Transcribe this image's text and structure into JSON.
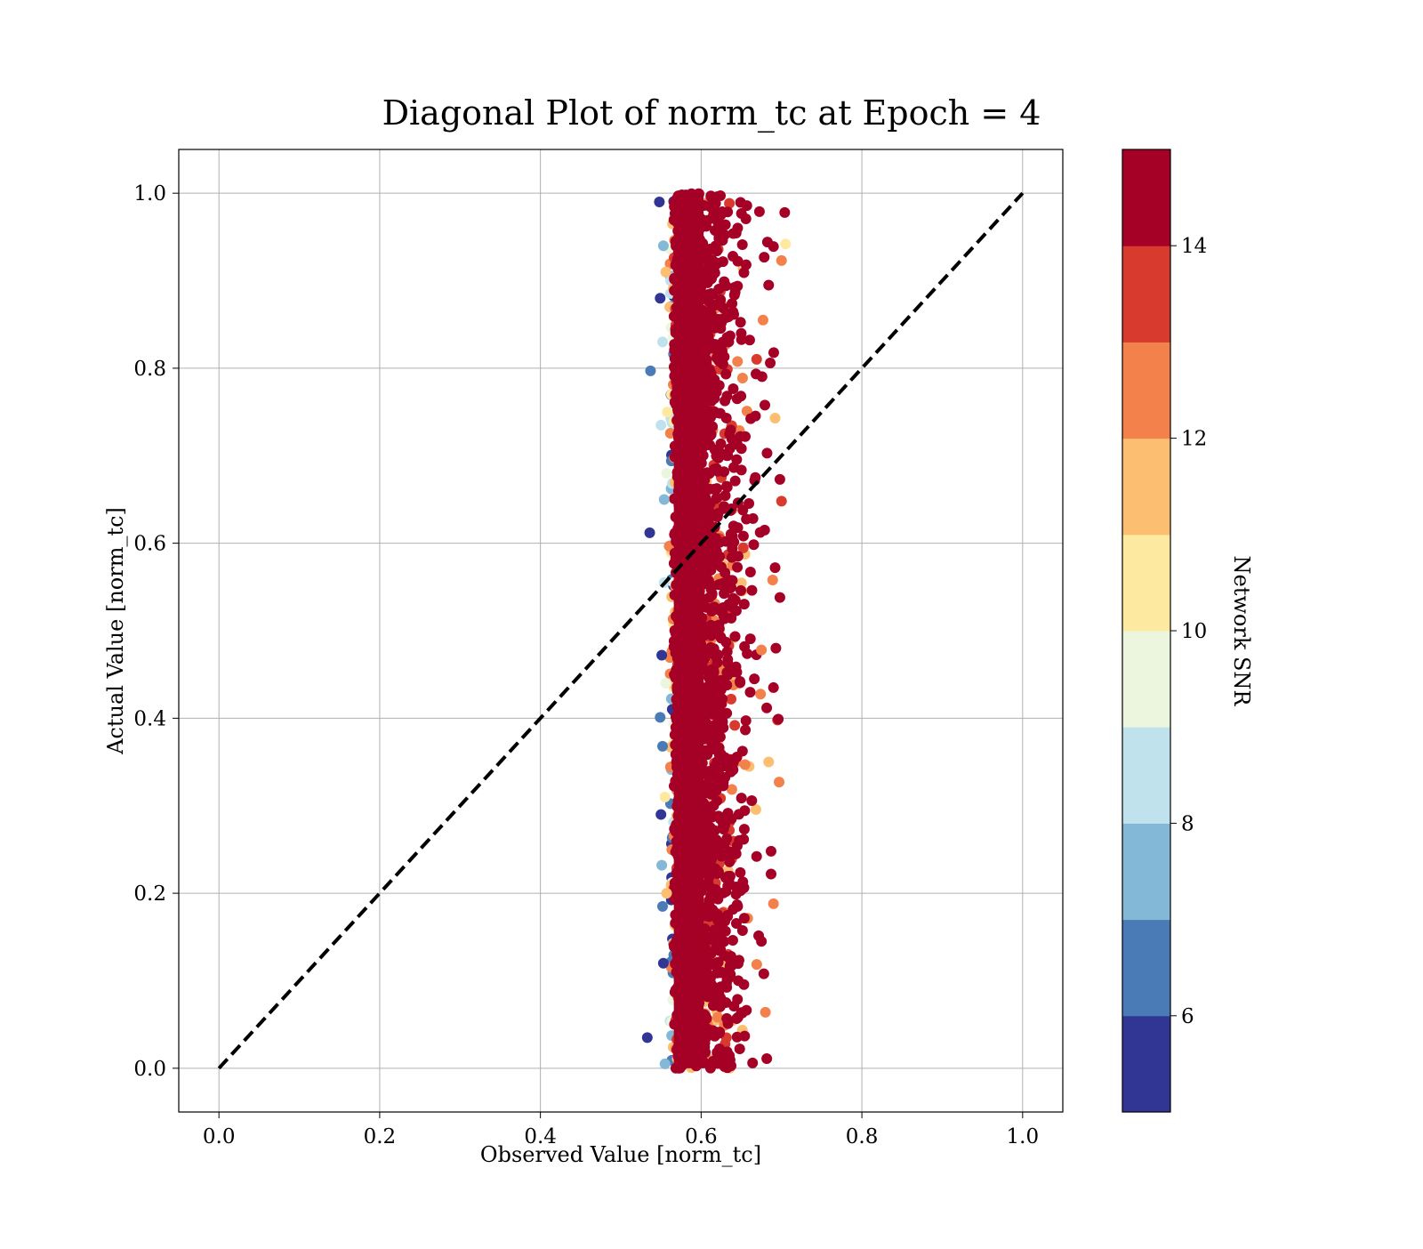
{
  "chart_data": {
    "type": "scatter",
    "title": "Diagonal Plot of norm_tc at Epoch = 4",
    "xlabel": "Observed Value [norm_tc]",
    "ylabel": "Actual Value [norm_tc]",
    "xlim": [
      -0.05,
      1.05
    ],
    "ylim": [
      -0.05,
      1.05
    ],
    "xticks": [
      "0.0",
      "0.2",
      "0.4",
      "0.6",
      "0.8",
      "1.0"
    ],
    "yticks": [
      "0.0",
      "0.2",
      "0.4",
      "0.6",
      "0.8",
      "1.0"
    ],
    "grid": true,
    "reference_line": {
      "style": "dashed",
      "color": "#000000",
      "from": [
        0,
        0
      ],
      "to": [
        1,
        1
      ]
    },
    "colorbar": {
      "label": "Network SNR",
      "range": [
        5,
        15
      ],
      "ticks": [
        "6",
        "8",
        "10",
        "12",
        "14"
      ],
      "bins": [
        {
          "from": 5,
          "to": 6,
          "color": "#313695"
        },
        {
          "from": 6,
          "to": 7,
          "color": "#4a7bb7"
        },
        {
          "from": 7,
          "to": 8,
          "color": "#83b8d7"
        },
        {
          "from": 8,
          "to": 9,
          "color": "#c0e2ec"
        },
        {
          "from": 9,
          "to": 10,
          "color": "#ecf6df"
        },
        {
          "from": 10,
          "to": 11,
          "color": "#fde9a0"
        },
        {
          "from": 11,
          "to": 12,
          "color": "#fcbe70"
        },
        {
          "from": 12,
          "to": 13,
          "color": "#f2814c"
        },
        {
          "from": 13,
          "to": 14,
          "color": "#d83a2d"
        },
        {
          "from": 14,
          "to": 15,
          "color": "#a50026"
        }
      ]
    },
    "points": [
      {
        "x": 0.548,
        "y": 0.99,
        "snr": 5.3
      },
      {
        "x": 0.533,
        "y": 0.035,
        "snr": 5.2
      },
      {
        "x": 0.536,
        "y": 0.612,
        "snr": 5.4
      },
      {
        "x": 0.537,
        "y": 0.797,
        "snr": 6.3
      },
      {
        "x": 0.549,
        "y": 0.88,
        "snr": 5.5
      },
      {
        "x": 0.551,
        "y": 0.472,
        "snr": 5.6
      },
      {
        "x": 0.549,
        "y": 0.401,
        "snr": 6.1
      },
      {
        "x": 0.55,
        "y": 0.29,
        "snr": 5.7
      },
      {
        "x": 0.552,
        "y": 0.185,
        "snr": 6.2
      },
      {
        "x": 0.553,
        "y": 0.12,
        "snr": 5.4
      },
      {
        "x": 0.552,
        "y": 0.368,
        "snr": 6.6
      },
      {
        "x": 0.551,
        "y": 0.232,
        "snr": 7.1
      },
      {
        "x": 0.554,
        "y": 0.65,
        "snr": 7.5
      },
      {
        "x": 0.55,
        "y": 0.735,
        "snr": 8.2
      },
      {
        "x": 0.553,
        "y": 0.94,
        "snr": 7.8
      },
      {
        "x": 0.555,
        "y": 0.005,
        "snr": 7.3
      },
      {
        "x": 0.554,
        "y": 0.555,
        "snr": 8.5
      },
      {
        "x": 0.552,
        "y": 0.83,
        "snr": 8.8
      },
      {
        "x": 0.557,
        "y": 0.68,
        "snr": 9.4
      },
      {
        "x": 0.556,
        "y": 0.44,
        "snr": 9.6
      },
      {
        "x": 0.555,
        "y": 0.31,
        "snr": 10.4
      },
      {
        "x": 0.558,
        "y": 0.75,
        "snr": 10.6
      },
      {
        "x": 0.556,
        "y": 0.91,
        "snr": 11.3
      },
      {
        "x": 0.557,
        "y": 0.2,
        "snr": 11.6
      },
      {
        "x": 0.705,
        "y": 0.942,
        "snr": 10.5
      },
      {
        "x": 0.7,
        "y": 0.923,
        "snr": 12.5
      },
      {
        "x": 0.68,
        "y": 0.064,
        "snr": 12.6
      },
      {
        "x": 0.69,
        "y": 0.188,
        "snr": 12.4
      },
      {
        "x": 0.692,
        "y": 0.743,
        "snr": 11.8
      },
      {
        "x": 0.697,
        "y": 0.327,
        "snr": 12.7
      },
      {
        "x": 0.7,
        "y": 0.648,
        "snr": 13.4
      },
      {
        "x": 0.695,
        "y": 0.398,
        "snr": 13.6
      },
      {
        "x": 0.689,
        "y": 0.558,
        "snr": 12.2
      },
      {
        "x": 0.675,
        "y": 0.478,
        "snr": 12.3
      },
      {
        "x": 0.684,
        "y": 0.35,
        "snr": 11.9
      },
      {
        "x": 0.677,
        "y": 0.855,
        "snr": 12.8
      },
      {
        "x": 0.664,
        "y": 0.006,
        "snr": 14.6
      },
      {
        "x": 0.675,
        "y": 0.145,
        "snr": 14.4
      },
      {
        "x": 0.669,
        "y": 0.242,
        "snr": 14.7
      },
      {
        "x": 0.686,
        "y": 0.806,
        "snr": 14.5
      },
      {
        "x": 0.704,
        "y": 0.978,
        "snr": 14.8
      },
      {
        "x": 0.698,
        "y": 0.673,
        "snr": 14.6
      },
      {
        "x": 0.698,
        "y": 0.538,
        "snr": 14.9
      },
      {
        "x": 0.696,
        "y": 0.399,
        "snr": 14.7
      },
      {
        "x": 0.687,
        "y": 0.248,
        "snr": 14.8
      },
      {
        "x": 0.687,
        "y": 0.222,
        "snr": 14.6
      },
      {
        "x": 0.678,
        "y": 0.108,
        "snr": 14.9
      },
      {
        "x": 0.692,
        "y": 0.572,
        "snr": 14.5
      },
      {
        "x": 0.693,
        "y": 0.48,
        "snr": 14.6
      },
      {
        "x": 0.69,
        "y": 0.435,
        "snr": 14.8
      },
      {
        "x": 0.682,
        "y": 0.703,
        "snr": 14.5
      },
      {
        "x": 0.69,
        "y": 0.939,
        "snr": 14.7
      },
      {
        "x": 0.684,
        "y": 0.895,
        "snr": 14.9
      },
      {
        "x": 0.679,
        "y": 0.615,
        "snr": 14.7
      }
    ]
  }
}
